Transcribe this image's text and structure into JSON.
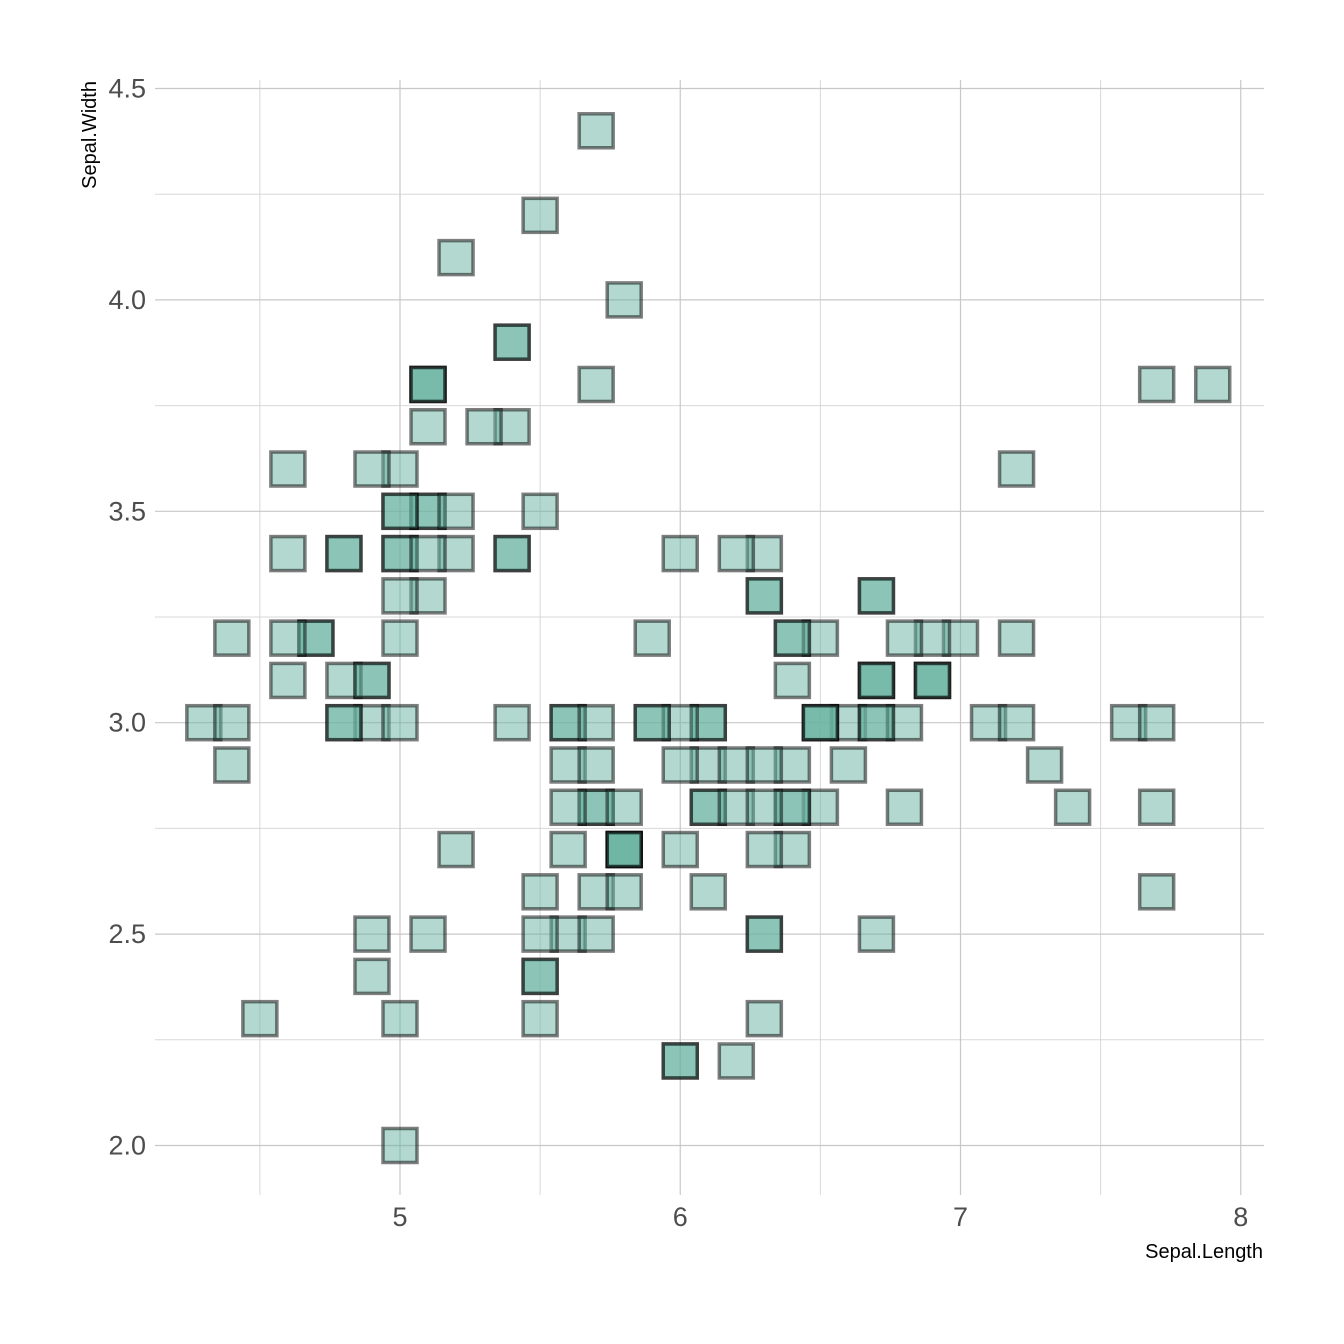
{
  "chart_data": {
    "type": "scatter",
    "xlabel": "Sepal.Length",
    "ylabel": "Sepal.Width",
    "xlim": [
      4.3,
      8.0
    ],
    "ylim": [
      2.0,
      4.4
    ],
    "x_ticks": [
      {
        "value": 5,
        "label": "5"
      },
      {
        "value": 6,
        "label": "6"
      },
      {
        "value": 7,
        "label": "7"
      },
      {
        "value": 8,
        "label": "8"
      }
    ],
    "y_ticks": [
      {
        "value": 2.0,
        "label": "2.0"
      },
      {
        "value": 2.5,
        "label": "2.5"
      },
      {
        "value": 3.0,
        "label": "3.0"
      },
      {
        "value": 3.5,
        "label": "3.5"
      },
      {
        "value": 4.0,
        "label": "4.0"
      },
      {
        "value": 4.5,
        "label": "4.5"
      }
    ],
    "grid": true,
    "legend": "none",
    "marker": "square",
    "fill_color": "#66b2a0",
    "stroke_color": "#000000",
    "points": [
      {
        "x": 5.1,
        "y": 3.5
      },
      {
        "x": 4.9,
        "y": 3.0
      },
      {
        "x": 4.7,
        "y": 3.2
      },
      {
        "x": 4.6,
        "y": 3.1
      },
      {
        "x": 5.0,
        "y": 3.6
      },
      {
        "x": 5.4,
        "y": 3.9
      },
      {
        "x": 4.6,
        "y": 3.4
      },
      {
        "x": 5.0,
        "y": 3.4
      },
      {
        "x": 4.4,
        "y": 2.9
      },
      {
        "x": 4.9,
        "y": 3.1
      },
      {
        "x": 5.4,
        "y": 3.7
      },
      {
        "x": 4.8,
        "y": 3.4
      },
      {
        "x": 4.8,
        "y": 3.0
      },
      {
        "x": 4.3,
        "y": 3.0
      },
      {
        "x": 5.8,
        "y": 4.0
      },
      {
        "x": 5.7,
        "y": 4.4
      },
      {
        "x": 5.4,
        "y": 3.9
      },
      {
        "x": 5.1,
        "y": 3.5
      },
      {
        "x": 5.7,
        "y": 3.8
      },
      {
        "x": 5.1,
        "y": 3.8
      },
      {
        "x": 5.4,
        "y": 3.4
      },
      {
        "x": 5.1,
        "y": 3.7
      },
      {
        "x": 4.6,
        "y": 3.6
      },
      {
        "x": 5.1,
        "y": 3.3
      },
      {
        "x": 4.8,
        "y": 3.4
      },
      {
        "x": 5.0,
        "y": 3.0
      },
      {
        "x": 5.0,
        "y": 3.4
      },
      {
        "x": 5.2,
        "y": 3.5
      },
      {
        "x": 5.2,
        "y": 3.4
      },
      {
        "x": 4.7,
        "y": 3.2
      },
      {
        "x": 4.8,
        "y": 3.1
      },
      {
        "x": 5.4,
        "y": 3.4
      },
      {
        "x": 5.2,
        "y": 4.1
      },
      {
        "x": 5.5,
        "y": 4.2
      },
      {
        "x": 4.9,
        "y": 3.1
      },
      {
        "x": 5.0,
        "y": 3.2
      },
      {
        "x": 5.5,
        "y": 3.5
      },
      {
        "x": 4.9,
        "y": 3.6
      },
      {
        "x": 4.4,
        "y": 3.0
      },
      {
        "x": 5.1,
        "y": 3.4
      },
      {
        "x": 5.0,
        "y": 3.5
      },
      {
        "x": 4.5,
        "y": 2.3
      },
      {
        "x": 4.4,
        "y": 3.2
      },
      {
        "x": 5.0,
        "y": 3.5
      },
      {
        "x": 5.1,
        "y": 3.8
      },
      {
        "x": 4.8,
        "y": 3.0
      },
      {
        "x": 5.1,
        "y": 3.8
      },
      {
        "x": 4.6,
        "y": 3.2
      },
      {
        "x": 5.3,
        "y": 3.7
      },
      {
        "x": 5.0,
        "y": 3.3
      },
      {
        "x": 7.0,
        "y": 3.2
      },
      {
        "x": 6.4,
        "y": 3.2
      },
      {
        "x": 6.9,
        "y": 3.1
      },
      {
        "x": 5.5,
        "y": 2.3
      },
      {
        "x": 6.5,
        "y": 2.8
      },
      {
        "x": 5.7,
        "y": 2.8
      },
      {
        "x": 6.3,
        "y": 3.3
      },
      {
        "x": 4.9,
        "y": 2.4
      },
      {
        "x": 6.6,
        "y": 2.9
      },
      {
        "x": 5.2,
        "y": 2.7
      },
      {
        "x": 5.0,
        "y": 2.0
      },
      {
        "x": 5.9,
        "y": 3.0
      },
      {
        "x": 6.0,
        "y": 2.2
      },
      {
        "x": 6.1,
        "y": 2.9
      },
      {
        "x": 5.6,
        "y": 2.9
      },
      {
        "x": 6.7,
        "y": 3.1
      },
      {
        "x": 5.6,
        "y": 3.0
      },
      {
        "x": 5.8,
        "y": 2.7
      },
      {
        "x": 6.2,
        "y": 2.2
      },
      {
        "x": 5.6,
        "y": 2.5
      },
      {
        "x": 5.9,
        "y": 3.2
      },
      {
        "x": 6.1,
        "y": 2.8
      },
      {
        "x": 6.3,
        "y": 2.5
      },
      {
        "x": 6.1,
        "y": 2.8
      },
      {
        "x": 6.4,
        "y": 2.9
      },
      {
        "x": 6.6,
        "y": 3.0
      },
      {
        "x": 6.8,
        "y": 2.8
      },
      {
        "x": 6.7,
        "y": 3.0
      },
      {
        "x": 6.0,
        "y": 2.9
      },
      {
        "x": 5.7,
        "y": 2.6
      },
      {
        "x": 5.5,
        "y": 2.4
      },
      {
        "x": 5.5,
        "y": 2.4
      },
      {
        "x": 5.8,
        "y": 2.7
      },
      {
        "x": 6.0,
        "y": 2.7
      },
      {
        "x": 5.4,
        "y": 3.0
      },
      {
        "x": 6.0,
        "y": 3.4
      },
      {
        "x": 6.7,
        "y": 3.1
      },
      {
        "x": 6.3,
        "y": 2.3
      },
      {
        "x": 5.6,
        "y": 3.0
      },
      {
        "x": 5.5,
        "y": 2.5
      },
      {
        "x": 5.5,
        "y": 2.6
      },
      {
        "x": 6.1,
        "y": 3.0
      },
      {
        "x": 5.8,
        "y": 2.6
      },
      {
        "x": 5.0,
        "y": 2.3
      },
      {
        "x": 5.6,
        "y": 2.7
      },
      {
        "x": 5.7,
        "y": 3.0
      },
      {
        "x": 5.7,
        "y": 2.9
      },
      {
        "x": 6.2,
        "y": 2.9
      },
      {
        "x": 5.1,
        "y": 2.5
      },
      {
        "x": 5.7,
        "y": 2.8
      },
      {
        "x": 6.3,
        "y": 3.3
      },
      {
        "x": 5.8,
        "y": 2.7
      },
      {
        "x": 7.1,
        "y": 3.0
      },
      {
        "x": 6.3,
        "y": 2.9
      },
      {
        "x": 6.5,
        "y": 3.0
      },
      {
        "x": 7.6,
        "y": 3.0
      },
      {
        "x": 4.9,
        "y": 2.5
      },
      {
        "x": 7.3,
        "y": 2.9
      },
      {
        "x": 6.7,
        "y": 2.5
      },
      {
        "x": 7.2,
        "y": 3.6
      },
      {
        "x": 6.5,
        "y": 3.2
      },
      {
        "x": 6.4,
        "y": 2.7
      },
      {
        "x": 6.8,
        "y": 3.0
      },
      {
        "x": 5.7,
        "y": 2.5
      },
      {
        "x": 5.8,
        "y": 2.8
      },
      {
        "x": 6.4,
        "y": 3.2
      },
      {
        "x": 6.5,
        "y": 3.0
      },
      {
        "x": 7.7,
        "y": 3.8
      },
      {
        "x": 7.7,
        "y": 2.6
      },
      {
        "x": 6.0,
        "y": 2.2
      },
      {
        "x": 6.9,
        "y": 3.2
      },
      {
        "x": 5.6,
        "y": 2.8
      },
      {
        "x": 7.7,
        "y": 2.8
      },
      {
        "x": 6.3,
        "y": 2.7
      },
      {
        "x": 6.7,
        "y": 3.3
      },
      {
        "x": 7.2,
        "y": 3.2
      },
      {
        "x": 6.2,
        "y": 2.8
      },
      {
        "x": 6.1,
        "y": 3.0
      },
      {
        "x": 6.4,
        "y": 2.8
      },
      {
        "x": 7.2,
        "y": 3.0
      },
      {
        "x": 7.4,
        "y": 2.8
      },
      {
        "x": 7.9,
        "y": 3.8
      },
      {
        "x": 6.4,
        "y": 2.8
      },
      {
        "x": 6.3,
        "y": 2.8
      },
      {
        "x": 6.1,
        "y": 2.6
      },
      {
        "x": 7.7,
        "y": 3.0
      },
      {
        "x": 6.3,
        "y": 3.4
      },
      {
        "x": 6.4,
        "y": 3.1
      },
      {
        "x": 6.0,
        "y": 3.0
      },
      {
        "x": 6.9,
        "y": 3.1
      },
      {
        "x": 6.7,
        "y": 3.1
      },
      {
        "x": 6.9,
        "y": 3.1
      },
      {
        "x": 5.8,
        "y": 2.7
      },
      {
        "x": 6.8,
        "y": 3.2
      },
      {
        "x": 6.7,
        "y": 3.3
      },
      {
        "x": 6.7,
        "y": 3.0
      },
      {
        "x": 6.3,
        "y": 2.5
      },
      {
        "x": 6.5,
        "y": 3.0
      },
      {
        "x": 6.2,
        "y": 3.4
      },
      {
        "x": 5.9,
        "y": 3.0
      }
    ]
  }
}
